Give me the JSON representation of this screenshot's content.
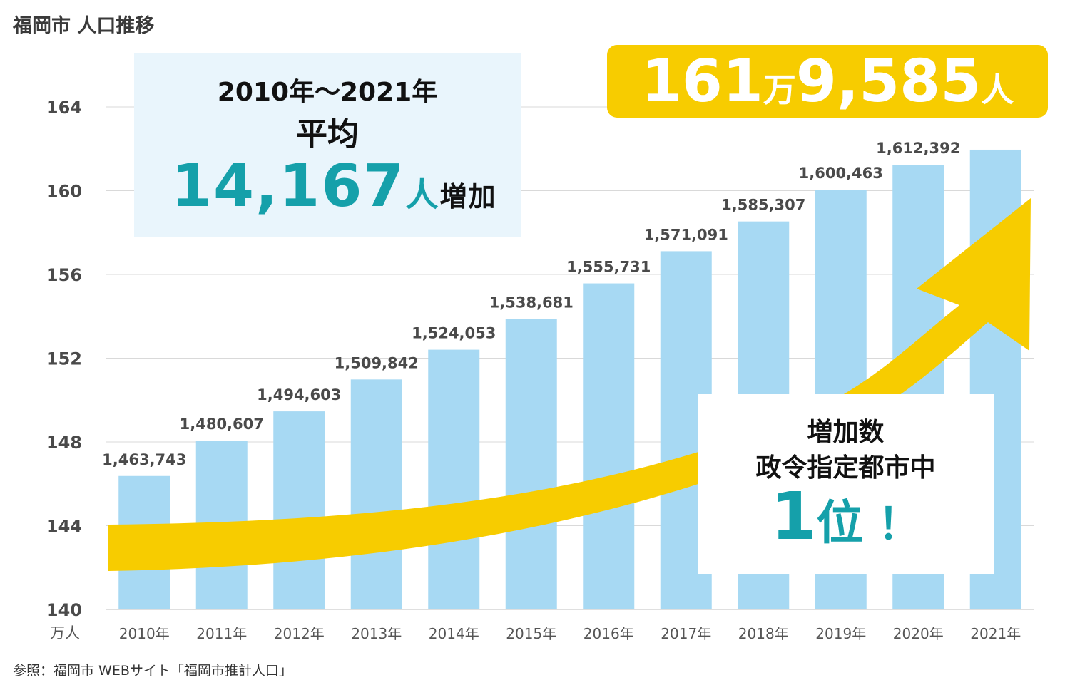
{
  "title": "福岡市 人口推移",
  "source": "参照：福岡市 WEBサイト「福岡市推計人口」",
  "unit_label": "万人",
  "average_box": {
    "range": "2010年〜2021年",
    "label": "平均",
    "value": "14,167",
    "unit": "人",
    "suffix": "増加"
  },
  "total_badge": {
    "part1": "161",
    "part2": "万",
    "part3": "9,585",
    "part4": "人"
  },
  "rank_box": {
    "line1": "増加数",
    "line2": "政令指定都市中",
    "rank": "1",
    "rank_suffix": "位",
    "exclaim": "！"
  },
  "colors": {
    "bar": "#a7d9f3",
    "arrow": "#f7cc00",
    "accent": "#15a0aa",
    "grid": "#d9d9d9"
  },
  "chart_data": {
    "type": "bar",
    "title": "福岡市 人口推移",
    "ylabel": "万人",
    "categories": [
      "2010年",
      "2011年",
      "2012年",
      "2013年",
      "2014年",
      "2015年",
      "2016年",
      "2017年",
      "2018年",
      "2019年",
      "2020年",
      "2021年"
    ],
    "values": [
      1463743,
      1480607,
      1494603,
      1509842,
      1524053,
      1538681,
      1555731,
      1571091,
      1585307,
      1600463,
      1612392,
      1619585
    ],
    "value_labels": [
      "1,463,743",
      "1,480,607",
      "1,494,603",
      "1,509,842",
      "1,524,053",
      "1,538,681",
      "1,555,731",
      "1,571,091",
      "1,585,307",
      "1,600,463",
      "1,612,392",
      ""
    ],
    "yticks": [
      140,
      144,
      148,
      152,
      156,
      160,
      164
    ],
    "ylim": [
      140,
      164
    ],
    "grid": true
  }
}
